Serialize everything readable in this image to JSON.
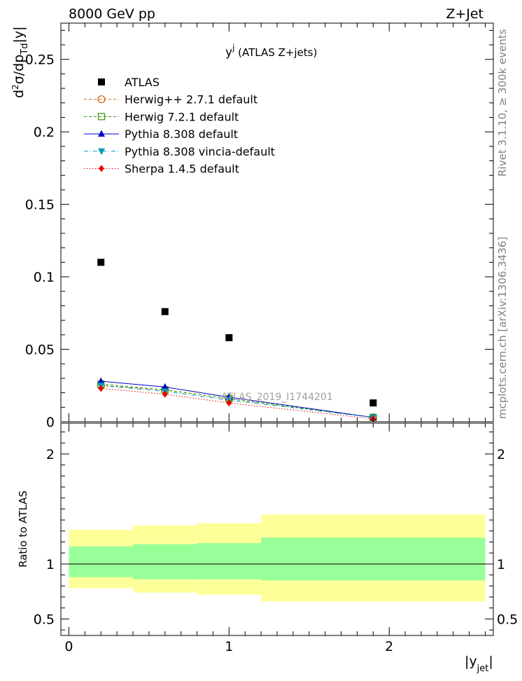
{
  "header": {
    "left": "8000 GeV pp",
    "right": "Z+Jet"
  },
  "side_text": {
    "rivet": "Rivet 3.1.10, ≥ 300k events",
    "mcplots": "mcplots.cern.ch [arXiv:1306.3436]"
  },
  "watermark": "ATLAS_2019_I1744201",
  "chart_data": [
    {
      "type": "scatter",
      "panel": "main",
      "title": "y^j (ATLAS Z+jets)",
      "title_main": "y",
      "title_sup": "j",
      "title_rest": " (ATLAS Z+jets)",
      "ylabel": "d²σ/dp_Td|y|",
      "ylabel_parts": {
        "d": "d",
        "two": "2",
        "mid": "σ/dp",
        "sub": "Td",
        "end": "|y|"
      },
      "xlim": [
        -0.05,
        2.65
      ],
      "ylim": [
        0,
        0.275
      ],
      "yticks": [
        0,
        0.05,
        0.1,
        0.15,
        0.2,
        0.25
      ],
      "ytick_labels": [
        "0",
        "0.05",
        "0.1",
        "0.15",
        "0.2",
        "0.25"
      ],
      "legend_position": "top-left",
      "series": [
        {
          "name": "ATLAS",
          "color": "#000000",
          "marker": "square-filled",
          "line": "none",
          "x": [
            0.2,
            0.6,
            1.0,
            1.9
          ],
          "y": [
            0.11,
            0.076,
            0.058,
            0.013
          ]
        },
        {
          "name": "Herwig++ 2.7.1 default",
          "color": "#cc6600",
          "marker": "circle-open",
          "line": "dashed",
          "x": [
            0.2,
            0.6,
            1.0,
            1.9
          ],
          "y": [
            0.025,
            0.022,
            0.016,
            0.003
          ]
        },
        {
          "name": "Herwig 7.2.1 default",
          "color": "#339900",
          "marker": "square-open",
          "line": "dashed",
          "x": [
            0.2,
            0.6,
            1.0,
            1.9
          ],
          "y": [
            0.026,
            0.022,
            0.016,
            0.003
          ]
        },
        {
          "name": "Pythia 8.308 default",
          "color": "#0000cc",
          "marker": "triangle-up",
          "line": "solid",
          "x": [
            0.2,
            0.6,
            1.0,
            1.9
          ],
          "y": [
            0.028,
            0.024,
            0.017,
            0.003
          ]
        },
        {
          "name": "Pythia 8.308 vincia-default",
          "color": "#0099bb",
          "marker": "triangle-down",
          "line": "dashdot",
          "x": [
            0.2,
            0.6,
            1.0,
            1.9
          ],
          "y": [
            0.025,
            0.021,
            0.015,
            0.003
          ]
        },
        {
          "name": "Sherpa 1.4.5 default",
          "color": "#ee0000",
          "marker": "diamond",
          "line": "dotted",
          "x": [
            0.2,
            0.6,
            1.0,
            1.9
          ],
          "y": [
            0.023,
            0.019,
            0.013,
            0.002
          ]
        }
      ]
    },
    {
      "type": "area",
      "panel": "ratio",
      "ylabel": "Ratio to ATLAS",
      "xlabel": "|y_jet|",
      "xlabel_parts": {
        "main": "|y",
        "sub": "jet",
        "end": "|"
      },
      "xlim": [
        -0.05,
        2.65
      ],
      "ylim": [
        0.35,
        2.28
      ],
      "xticks": [
        0,
        1,
        2
      ],
      "xtick_labels": [
        "0",
        "1",
        "2"
      ],
      "yticks": [
        0.5,
        1,
        2
      ],
      "ytick_labels": [
        "0.5",
        "1",
        "2"
      ],
      "reference_line": 1,
      "bins": [
        {
          "x": [
            0.0,
            0.4
          ],
          "outer": [
            0.78,
            1.31
          ],
          "inner": [
            0.88,
            1.16
          ]
        },
        {
          "x": [
            0.4,
            0.8
          ],
          "outer": [
            0.74,
            1.35
          ],
          "inner": [
            0.86,
            1.18
          ]
        },
        {
          "x": [
            0.8,
            1.2
          ],
          "outer": [
            0.72,
            1.37
          ],
          "inner": [
            0.86,
            1.19
          ]
        },
        {
          "x": [
            1.2,
            2.6
          ],
          "outer": [
            0.66,
            1.45
          ],
          "inner": [
            0.85,
            1.24
          ]
        }
      ],
      "band_colors": {
        "outer": "#ffff99",
        "inner": "#99ff99"
      }
    }
  ]
}
